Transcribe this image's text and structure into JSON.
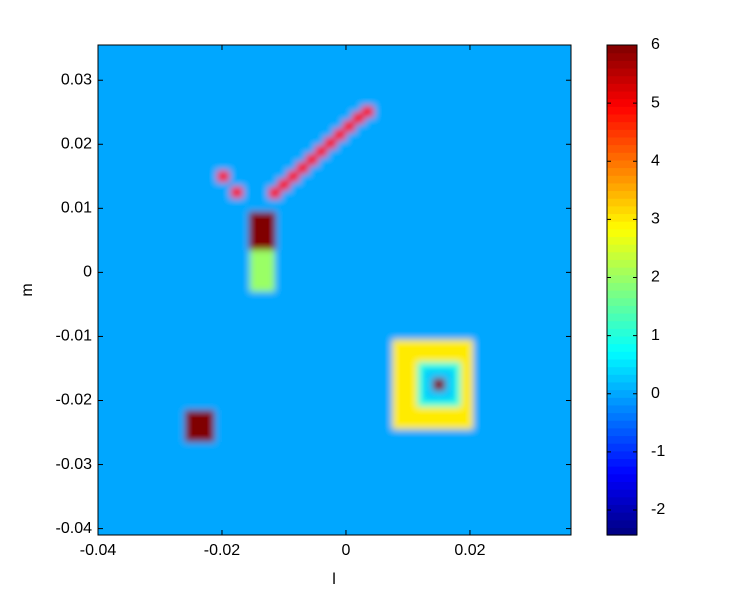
{
  "chart_data": {
    "type": "heatmap",
    "xlabel": "l",
    "ylabel": "m",
    "xlim": [
      -0.04,
      0.0363
    ],
    "ylim": [
      -0.041,
      0.0355
    ],
    "xticks": [
      -0.04,
      -0.02,
      0,
      0.02
    ],
    "yticks": [
      -0.04,
      -0.03,
      -0.02,
      -0.01,
      0,
      0.01,
      0.02,
      0.03
    ],
    "colormap": "jet",
    "clim": [
      -2.43,
      6
    ],
    "cticks": [
      -2,
      -1,
      0,
      1,
      2,
      3,
      4,
      5,
      6
    ],
    "background": 0,
    "regions": [
      {
        "l": [
          -0.0155,
          -0.0115
        ],
        "m": [
          -0.003,
          0.004
        ],
        "value": 2
      },
      {
        "l": [
          -0.0157,
          -0.0113
        ],
        "m": [
          0.0035,
          0.0095
        ],
        "value": 6
      },
      {
        "l": [
          -0.0208,
          -0.0188
        ],
        "m": [
          0.0141,
          0.0159
        ],
        "value": 5
      },
      {
        "l": [
          -0.0186,
          -0.0166
        ],
        "m": [
          0.0116,
          0.0134
        ],
        "value": 5
      },
      {
        "l": [
          -0.0125,
          -0.0105
        ],
        "m": [
          0.0115,
          0.0133
        ],
        "value": 5
      },
      {
        "l": [
          -0.011,
          -0.009
        ],
        "m": [
          0.0128,
          0.0146
        ],
        "value": 5
      },
      {
        "l": [
          -0.0095,
          -0.0075
        ],
        "m": [
          0.0141,
          0.0159
        ],
        "value": 5
      },
      {
        "l": [
          -0.008,
          -0.006
        ],
        "m": [
          0.0154,
          0.0172
        ],
        "value": 5
      },
      {
        "l": [
          -0.0065,
          -0.0045
        ],
        "m": [
          0.0167,
          0.0185
        ],
        "value": 5
      },
      {
        "l": [
          -0.005,
          -0.003
        ],
        "m": [
          0.018,
          0.0198
        ],
        "value": 5
      },
      {
        "l": [
          -0.0035,
          -0.0015
        ],
        "m": [
          0.0193,
          0.0211
        ],
        "value": 5
      },
      {
        "l": [
          -0.002,
          0
        ],
        "m": [
          0.0206,
          0.0224
        ],
        "value": 5
      },
      {
        "l": [
          -0.0005,
          0.0015
        ],
        "m": [
          0.0219,
          0.0237
        ],
        "value": 5
      },
      {
        "l": [
          0.001,
          0.003
        ],
        "m": [
          0.0232,
          0.025
        ],
        "value": 5
      },
      {
        "l": [
          0.0025,
          0.0045
        ],
        "m": [
          0.0242,
          0.026
        ],
        "value": 5
      },
      {
        "l": [
          0.0075,
          0.0205
        ],
        "m": [
          -0.0245,
          -0.0105
        ],
        "value": 3
      },
      {
        "l": [
          0.0115,
          0.0185
        ],
        "m": [
          -0.021,
          -0.014
        ],
        "value": 1
      },
      {
        "l": [
          0.0125,
          0.0175
        ],
        "m": [
          -0.02,
          -0.015
        ],
        "value": 0.3
      },
      {
        "l": [
          0.014,
          0.016
        ],
        "m": [
          -0.0185,
          -0.0165
        ],
        "value": 6
      },
      {
        "l": [
          -0.026,
          -0.0212
        ],
        "m": [
          -0.0265,
          -0.0215
        ],
        "value": 6
      }
    ]
  }
}
